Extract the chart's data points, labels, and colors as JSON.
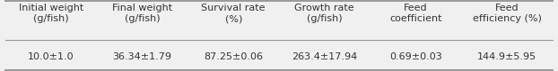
{
  "headers": [
    "Initial weight\n(g/fish)",
    "Final weight\n(g/fish)",
    "Survival rate\n(%)",
    "Growth rate\n(g/fish)",
    "Feed\ncoefficient",
    "Feed\nefficiency (%)"
  ],
  "values": [
    "10.0±1.0",
    "36.34±1.79",
    "87.25±0.06",
    "263.4±17.94",
    "0.69±0.03",
    "144.9±5.95"
  ],
  "header_fontsize": 8.0,
  "value_fontsize": 8.0,
  "background_color": "#f0f0f0",
  "line_color": "#999999",
  "text_color": "#333333"
}
